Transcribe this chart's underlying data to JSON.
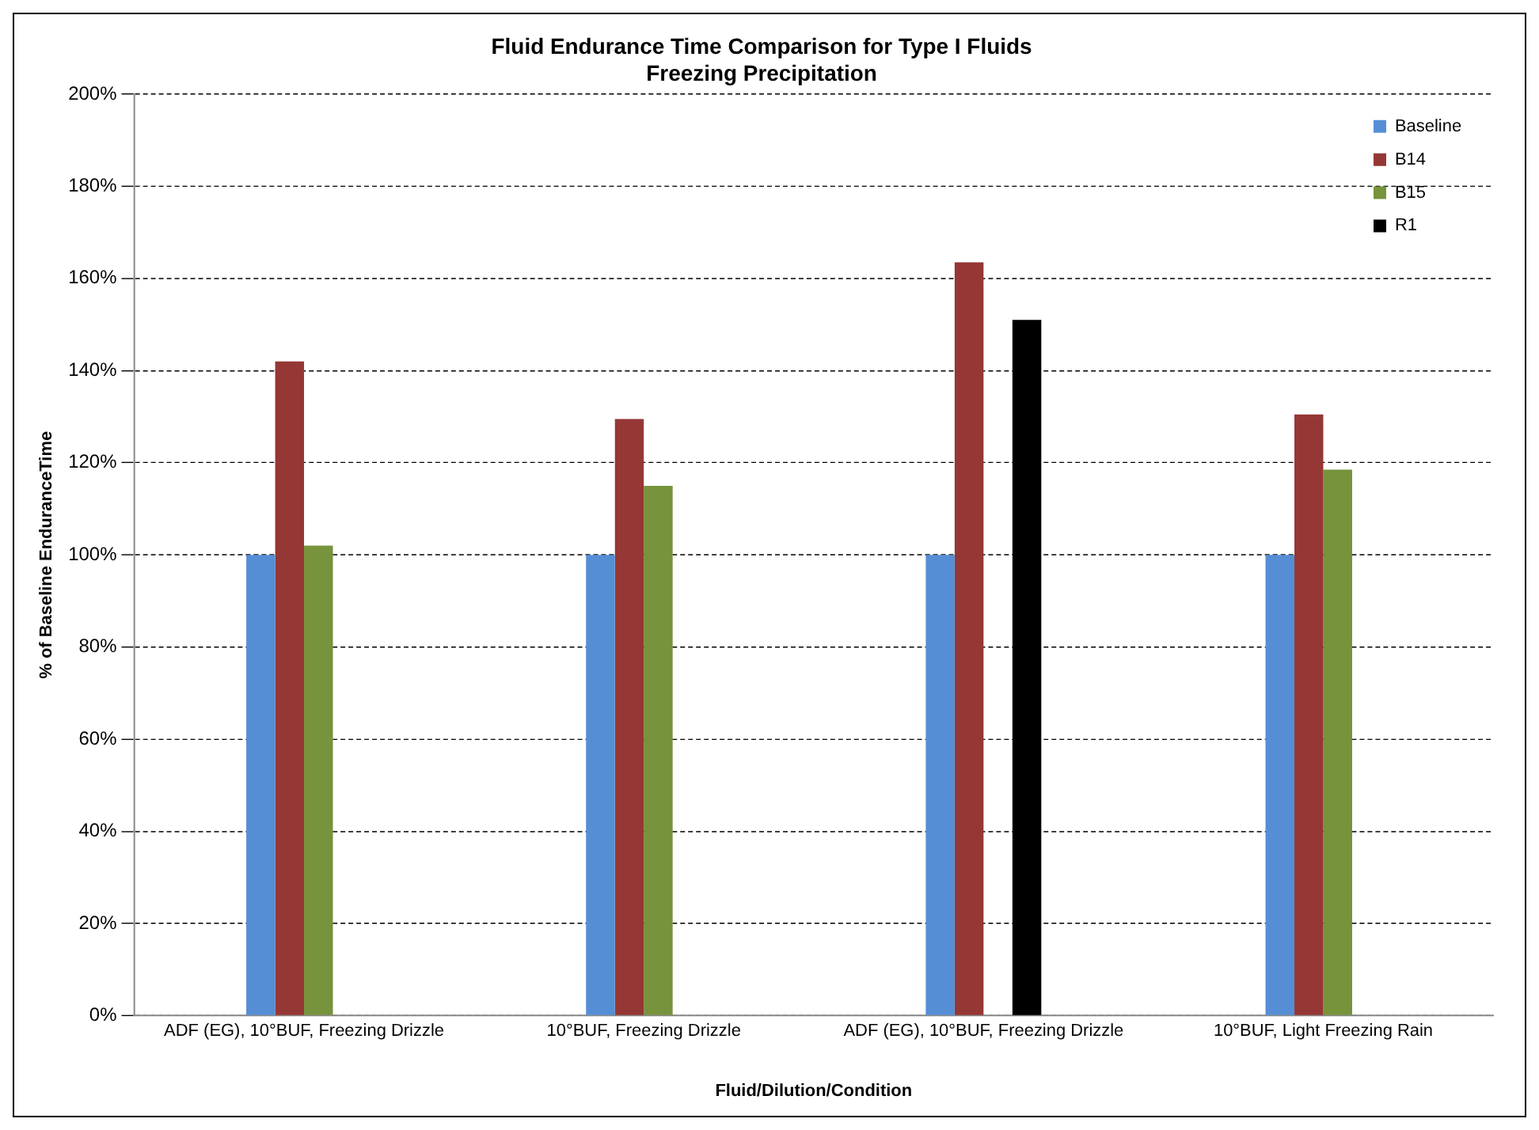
{
  "chart_data": {
    "type": "bar",
    "title": "Fluid Endurance Time Comparison for Type I Fluids",
    "subtitle": "Freezing Precipitation",
    "xlabel": "Fluid/Dilution/Condition",
    "ylabel": "% of Baseline EnduranceTime",
    "categories": [
      "ADF (EG), 10°BUF, Freezing Drizzle",
      "10°BUF, Freezing Drizzle",
      "ADF (EG), 10°BUF, Freezing Drizzle",
      "10°BUF, Light Freezing Rain"
    ],
    "series": [
      {
        "name": "Baseline",
        "color": "#558ed5",
        "values": [
          100,
          100,
          100,
          100
        ]
      },
      {
        "name": "B14",
        "color": "#953735",
        "values": [
          142,
          129.5,
          163.5,
          130.5
        ]
      },
      {
        "name": "B15",
        "color": "#77933c",
        "values": [
          102,
          115,
          null,
          118.5
        ]
      },
      {
        "name": "R1",
        "color": "#000000",
        "values": [
          null,
          null,
          151,
          null
        ]
      }
    ],
    "ylim": [
      0,
      200
    ],
    "yticks": [
      {
        "value": 0,
        "label": "0%"
      },
      {
        "value": 20,
        "label": "20%"
      },
      {
        "value": 40,
        "label": "40%"
      },
      {
        "value": 60,
        "label": "60%"
      },
      {
        "value": 80,
        "label": "80%"
      },
      {
        "value": 100,
        "label": "100%"
      },
      {
        "value": 120,
        "label": "120%"
      },
      {
        "value": 140,
        "label": "140%"
      },
      {
        "value": 160,
        "label": "160%"
      },
      {
        "value": 180,
        "label": "180%"
      },
      {
        "value": 200,
        "label": "200%"
      }
    ],
    "grid": "y",
    "legend": "top right"
  }
}
